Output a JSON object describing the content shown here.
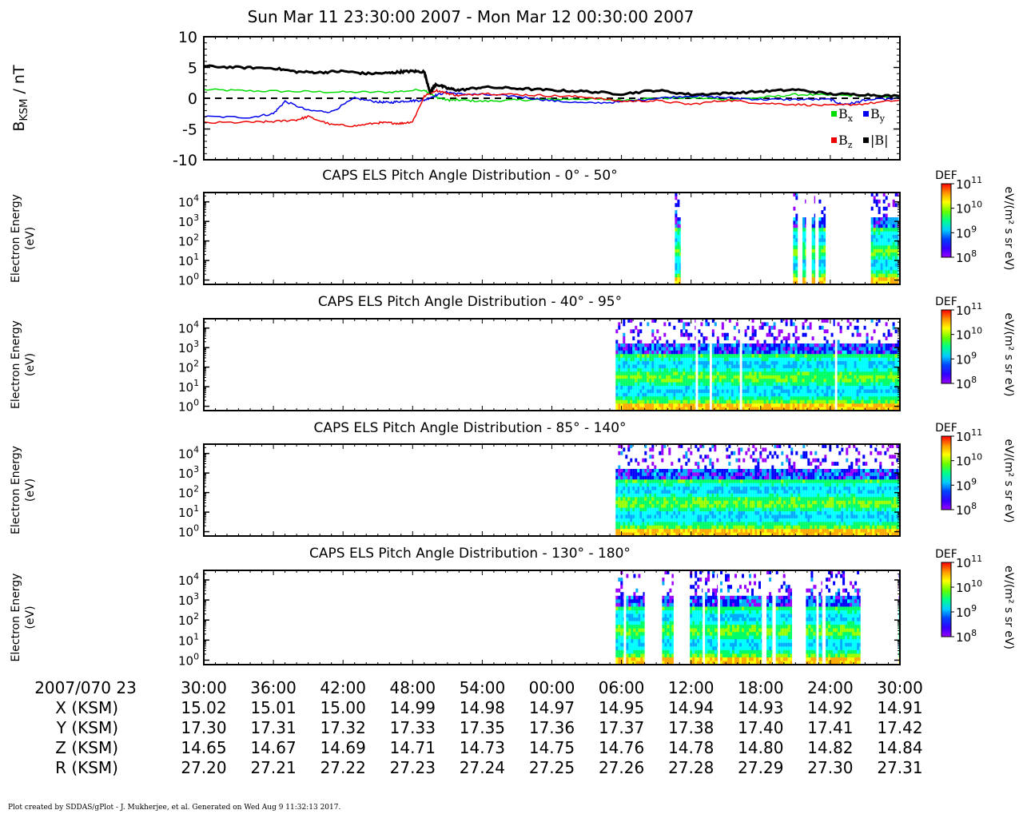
{
  "header": {
    "title": "Sun Mar 11 23:30:00 2007 - Mon Mar 12 00:30:00 2007"
  },
  "footer": {
    "text": "Plot created by SDDAS/gPlot - J. Mukherjee, et al.  Generated on Wed Aug 9 11:32:13 2017."
  },
  "chart_data": [
    {
      "type": "line",
      "ylabel_main": "B",
      "ylabel_sub": "KSM",
      "ylabel_unit": " / nT",
      "ylim": [
        -10,
        10
      ],
      "yticks": [
        10,
        5,
        0,
        -5,
        -10
      ],
      "xlim": [
        0,
        60
      ],
      "zero_line": "dashed",
      "legend_placement": "bottom-right",
      "series": [
        {
          "name": "B",
          "sub": "x",
          "color": "#00dd00",
          "x": [
            0,
            4,
            8,
            12,
            16,
            19,
            20,
            21,
            22,
            24,
            27,
            30,
            33,
            36,
            39,
            42,
            45,
            48,
            51,
            54,
            57,
            60
          ],
          "y": [
            1.4,
            1.2,
            1.1,
            1.0,
            1.0,
            1.4,
            0.2,
            -0.3,
            -0.3,
            -0.5,
            -0.3,
            -0.2,
            -0.1,
            -0.3,
            0.0,
            0.1,
            -0.2,
            0.1,
            0.6,
            0.5,
            0.4,
            0.3
          ]
        },
        {
          "name": "B",
          "sub": "y",
          "color": "#0000ee",
          "x": [
            0,
            4,
            6,
            7,
            9,
            11,
            13,
            15,
            16,
            17,
            18,
            19,
            20,
            21,
            22,
            24,
            27,
            30,
            33,
            36,
            39,
            42,
            45,
            48,
            51,
            54,
            55,
            56,
            57,
            60
          ],
          "y": [
            -3.0,
            -3.1,
            -2.5,
            -0.5,
            -2.0,
            -2.2,
            0.0,
            -0.6,
            -0.7,
            -0.5,
            -0.4,
            -0.3,
            0.5,
            1.0,
            0.7,
            0.6,
            0.3,
            -0.4,
            -0.8,
            -0.6,
            0.0,
            0.4,
            0.1,
            -0.2,
            -0.2,
            -0.2,
            -1.0,
            -0.8,
            -0.3,
            0.0
          ]
        },
        {
          "name": "B",
          "sub": "z",
          "color": "#ee0000",
          "x": [
            0,
            4,
            6,
            8,
            9,
            11,
            13,
            15,
            16,
            17,
            18,
            19,
            20,
            21,
            22,
            24,
            27,
            30,
            33,
            36,
            39,
            42,
            45,
            48,
            51,
            54,
            57,
            60
          ],
          "y": [
            -4.0,
            -3.9,
            -3.8,
            -3.5,
            -3.0,
            -4.3,
            -4.5,
            -4.0,
            -4.0,
            -4.1,
            -3.8,
            0.3,
            1.3,
            0.8,
            0.4,
            0.8,
            0.6,
            0.4,
            0.2,
            -0.5,
            -0.4,
            -1.0,
            -0.3,
            -0.8,
            -1.0,
            -1.2,
            -0.9,
            -0.3
          ]
        },
        {
          "name": "|B|",
          "sub": "",
          "color": "#000000",
          "width": 3,
          "x": [
            0,
            3,
            6,
            8,
            10,
            12,
            14,
            16,
            17,
            18,
            19,
            19.5,
            20,
            21,
            22,
            24,
            27,
            30,
            33,
            36,
            39,
            42,
            45,
            48,
            51,
            54,
            57,
            60
          ],
          "y": [
            5.2,
            5.0,
            4.9,
            4.3,
            4.2,
            4.4,
            4.0,
            4.1,
            4.3,
            4.4,
            4.3,
            1.0,
            2.3,
            1.6,
            1.3,
            1.8,
            1.6,
            1.3,
            1.1,
            0.7,
            1.3,
            0.6,
            0.8,
            1.1,
            1.4,
            0.7,
            0.6,
            0.3
          ]
        }
      ]
    },
    {
      "type": "heatmap",
      "title": "CAPS ELS Pitch Angle Distribution - 0° - 50°",
      "ylabel": [
        "Electron Energy",
        "(eV)"
      ],
      "yscale": "log",
      "ylim": [
        0.6,
        30000
      ],
      "xlim": [
        0,
        60
      ],
      "ytick_exponents": [
        0,
        1,
        2,
        3,
        4
      ],
      "data_blocks": [
        [
          40.6,
          41.1
        ],
        [
          50.8,
          51.2
        ],
        [
          51.6,
          51.9
        ],
        [
          52.4,
          52.7
        ],
        [
          53.0,
          53.6
        ],
        [
          57.5,
          59.9
        ]
      ],
      "colorbar": {
        "label": "DEF",
        "unit": "eV/(m² s sr eV)",
        "exponents": [
          11,
          10,
          9,
          8
        ]
      }
    },
    {
      "type": "heatmap",
      "title": "CAPS ELS Pitch Angle Distribution - 40° - 95°",
      "ylabel": [
        "Electron Energy",
        "(eV)"
      ],
      "yscale": "log",
      "ylim": [
        0.6,
        30000
      ],
      "xlim": [
        0,
        60
      ],
      "ytick_exponents": [
        0,
        1,
        2,
        3,
        4
      ],
      "data_blocks": [
        [
          35.5,
          42.4
        ],
        [
          42.6,
          43.6
        ],
        [
          43.8,
          46.2
        ],
        [
          46.4,
          54.4
        ],
        [
          54.6,
          60
        ]
      ],
      "colorbar": {
        "label": "DEF",
        "unit": "eV/(m² s sr eV)",
        "exponents": [
          11,
          10,
          9,
          8
        ]
      }
    },
    {
      "type": "heatmap",
      "title": "CAPS ELS Pitch Angle Distribution - 85° - 140°",
      "ylabel": [
        "Electron Energy",
        "(eV)"
      ],
      "yscale": "log",
      "ylim": [
        0.6,
        30000
      ],
      "xlim": [
        0,
        60
      ],
      "ytick_exponents": [
        0,
        1,
        2,
        3,
        4
      ],
      "data_blocks": [
        [
          35.5,
          60
        ]
      ],
      "colorbar": {
        "label": "DEF",
        "unit": "eV/(m² s sr eV)",
        "exponents": [
          11,
          10,
          9,
          8
        ]
      }
    },
    {
      "type": "heatmap",
      "title": "CAPS ELS Pitch Angle Distribution - 130° - 180°",
      "ylabel": [
        "Electron Energy",
        "(eV)"
      ],
      "yscale": "log",
      "ylim": [
        0.6,
        30000
      ],
      "xlim": [
        0,
        60
      ],
      "ytick_exponents": [
        0,
        1,
        2,
        3,
        4
      ],
      "data_blocks": [
        [
          35.5,
          36.2
        ],
        [
          36.4,
          38.0
        ],
        [
          39.5,
          40.5
        ],
        [
          41.9,
          43.0
        ],
        [
          43.2,
          44.3
        ],
        [
          44.5,
          48.1
        ],
        [
          48.5,
          49.0
        ],
        [
          49.3,
          50.7
        ],
        [
          51.9,
          52.8
        ],
        [
          53.0,
          53.3
        ],
        [
          53.6,
          56.6
        ],
        [
          59.9,
          60
        ]
      ],
      "colorbar": {
        "label": "DEF",
        "unit": "eV/(m² s sr eV)",
        "exponents": [
          11,
          10,
          9,
          8
        ]
      }
    }
  ],
  "time_axis": {
    "label": "2007/070 23",
    "ticks": [
      "30:00",
      "36:00",
      "42:00",
      "48:00",
      "54:00",
      "00:00",
      "06:00",
      "12:00",
      "18:00",
      "24:00",
      "30:00"
    ]
  },
  "ephemeris": [
    {
      "label": "X (KSM)",
      "values": [
        "15.02",
        "15.01",
        "15.00",
        "14.99",
        "14.98",
        "14.97",
        "14.95",
        "14.94",
        "14.93",
        "14.92",
        "14.91"
      ]
    },
    {
      "label": "Y (KSM)",
      "values": [
        "17.30",
        "17.31",
        "17.32",
        "17.33",
        "17.35",
        "17.36",
        "17.37",
        "17.38",
        "17.40",
        "17.41",
        "17.42"
      ]
    },
    {
      "label": "Z (KSM)",
      "values": [
        "14.65",
        "14.67",
        "14.69",
        "14.71",
        "14.73",
        "14.75",
        "14.76",
        "14.78",
        "14.80",
        "14.82",
        "14.84"
      ]
    },
    {
      "label": "R (KSM)",
      "values": [
        "27.20",
        "27.21",
        "27.22",
        "27.23",
        "27.24",
        "27.25",
        "27.26",
        "27.28",
        "27.29",
        "27.30",
        "27.31"
      ]
    }
  ],
  "colors": {
    "axis": "#000000",
    "palette": [
      "#9900ff",
      "#0000ff",
      "#00aaff",
      "#00ffff",
      "#00ff66",
      "#99ff00",
      "#ffff00",
      "#ffaa00",
      "#ff0000"
    ]
  }
}
